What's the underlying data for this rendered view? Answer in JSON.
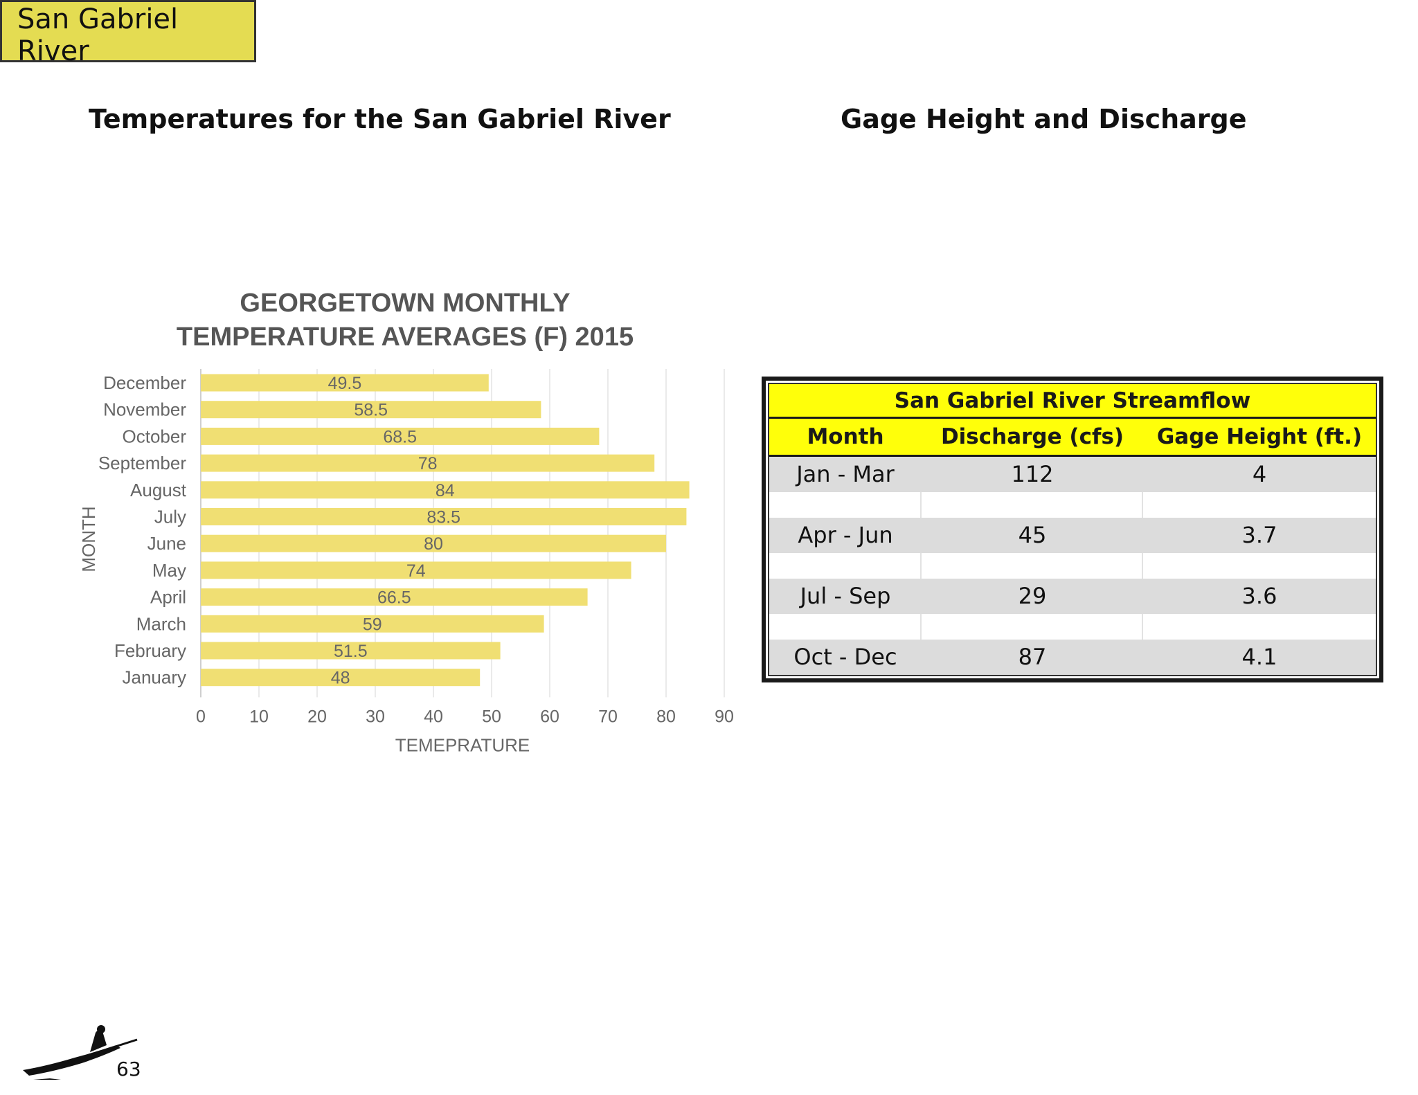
{
  "section_tab": "San Gabriel River",
  "headings": {
    "left": "Temperatures for the San Gabriel River",
    "right": "Gage Height and Discharge"
  },
  "chart_data": {
    "type": "bar",
    "orientation": "horizontal",
    "title_lines": [
      "GEORGETOWN MONTHLY",
      "TEMPERATURE AVERAGES (F) 2015"
    ],
    "xlabel": "TEMEPRATURE",
    "ylabel": "MONTH",
    "categories": [
      "December",
      "November",
      "October",
      "September",
      "August",
      "July",
      "June",
      "May",
      "April",
      "March",
      "February",
      "January"
    ],
    "values": [
      49.5,
      58.5,
      68.5,
      78,
      84,
      83.5,
      80,
      74,
      66.5,
      59,
      51.5,
      48
    ],
    "value_labels": [
      "49.5",
      "58.5",
      "68.5",
      "78",
      "84",
      "83.5",
      "80",
      "74",
      "66.5",
      "59",
      "51.5",
      "48"
    ],
    "xticks": [
      0,
      10,
      20,
      30,
      40,
      50,
      60,
      70,
      80,
      90
    ],
    "xlim": [
      0,
      90
    ],
    "grid": true,
    "bar_color": "#f0df73",
    "text_color": "#666666"
  },
  "table": {
    "title": "San Gabriel River Streamflow",
    "columns": [
      "Month",
      "Discharge (cfs)",
      "Gage Height (ft.)"
    ],
    "rows": [
      [
        "Jan - Mar",
        "112",
        "4"
      ],
      [
        "Apr - Jun",
        "45",
        "3.7"
      ],
      [
        "Jul - Sep",
        "29",
        "3.6"
      ],
      [
        "Oct - Dec",
        "87",
        "4.1"
      ]
    ],
    "header_color": "#ffff0a",
    "row_color": "#dcdcdc"
  },
  "footer": {
    "page_number": "63",
    "logo_icon": "kayaker-silhouette-icon"
  }
}
